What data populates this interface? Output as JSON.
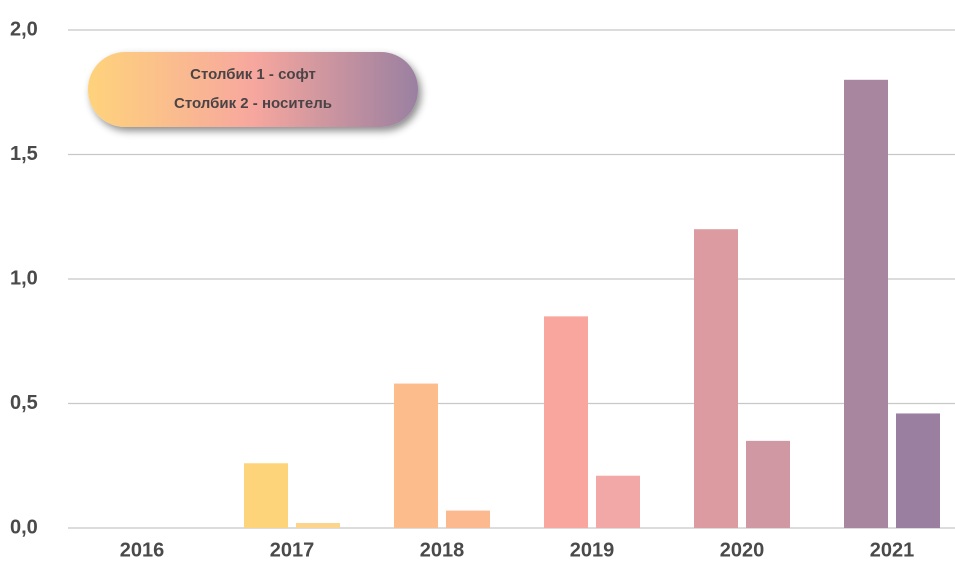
{
  "chart_data": {
    "type": "bar",
    "categories": [
      "2016",
      "2017",
      "2018",
      "2019",
      "2020",
      "2021"
    ],
    "series": [
      {
        "name": "Столбик 1 - софт",
        "colors": [
          "#fdd77c",
          "#fdd47a",
          "#fdbc8c",
          "#f9a69f",
          "#dc9aa1",
          "#a886a0"
        ],
        "values": [
          0,
          0.26,
          0.58,
          0.85,
          1.2,
          1.8
        ]
      },
      {
        "name": "Столбик 2 - носитель",
        "colors": [
          "#fdd98a",
          "#fcd48c",
          "#fcb990",
          "#f3a8a8",
          "#cf98a2",
          "#9a7fa0"
        ],
        "values": [
          0,
          0.02,
          0.07,
          0.21,
          0.35,
          0.46
        ]
      }
    ],
    "ylim": [
      0,
      2
    ],
    "yticks": [
      {
        "value": 0,
        "label": "0,0"
      },
      {
        "value": 0.5,
        "label": "0,5"
      },
      {
        "value": 1,
        "label": "1,0"
      },
      {
        "value": 1.5,
        "label": "1,5"
      },
      {
        "value": 2,
        "label": "2,0"
      }
    ],
    "grid": true,
    "legend_gradient": [
      "#fed37c",
      "#f7a79e",
      "#9a80a1"
    ]
  }
}
